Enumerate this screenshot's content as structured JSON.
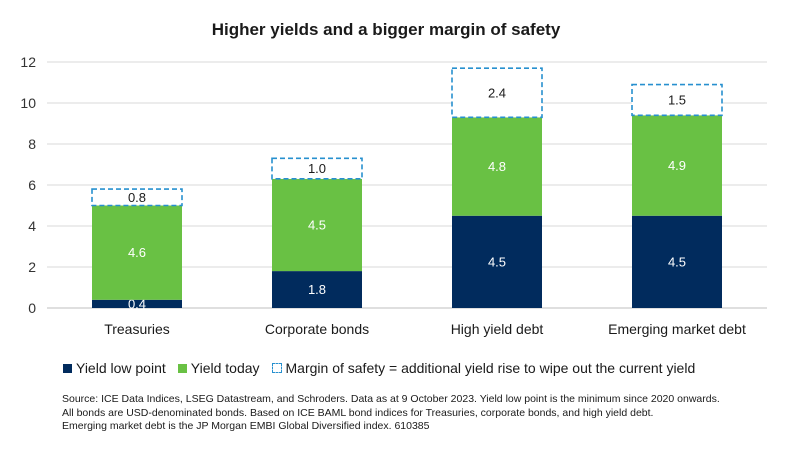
{
  "chart_data": {
    "type": "bar",
    "stacked": true,
    "title": "Higher yields and a bigger margin of safety",
    "categories": [
      "Treasuries",
      "Corporate bonds",
      "High yield debt",
      "Emerging market debt"
    ],
    "series": [
      {
        "name": "Yield low point",
        "values": [
          0.4,
          1.8,
          4.5,
          4.5
        ],
        "data_labels": [
          "0.4",
          "1.8",
          "4.5",
          "4.5"
        ],
        "color": "#012b5d",
        "label_color": "#ffffff"
      },
      {
        "name": "Yield today",
        "values": [
          4.6,
          4.5,
          4.8,
          4.9
        ],
        "data_labels": [
          "4.6",
          "4.5",
          "4.8",
          "4.9"
        ],
        "color": "#69c144",
        "label_color": "#ffffff"
      },
      {
        "name": "Margin of safety = additional yield rise to wipe out the current yield",
        "values": [
          0.8,
          1.0,
          2.4,
          1.5
        ],
        "data_labels": [
          "0.8",
          "1.0",
          "2.4",
          "1.5"
        ],
        "color": "#2790cf",
        "label_color": "#1a1a1a",
        "dashed": true
      }
    ],
    "ylim": [
      0,
      12
    ],
    "yticks": [
      0,
      2,
      4,
      6,
      8,
      10,
      12
    ],
    "grid": true,
    "legend": "bottom"
  },
  "source_note": [
    "Source: ICE Data Indices, LSEG Datastream, and Schroders. Data as at 9 October 2023. Yield low point is the minimum since 2020 onwards.",
    "All bonds are USD-denominated bonds. Based on ICE BAML bond indices for Treasuries, corporate bonds, and high yield debt.",
    "Emerging market debt is the JP Morgan EMBI Global Diversified index. 610385"
  ]
}
